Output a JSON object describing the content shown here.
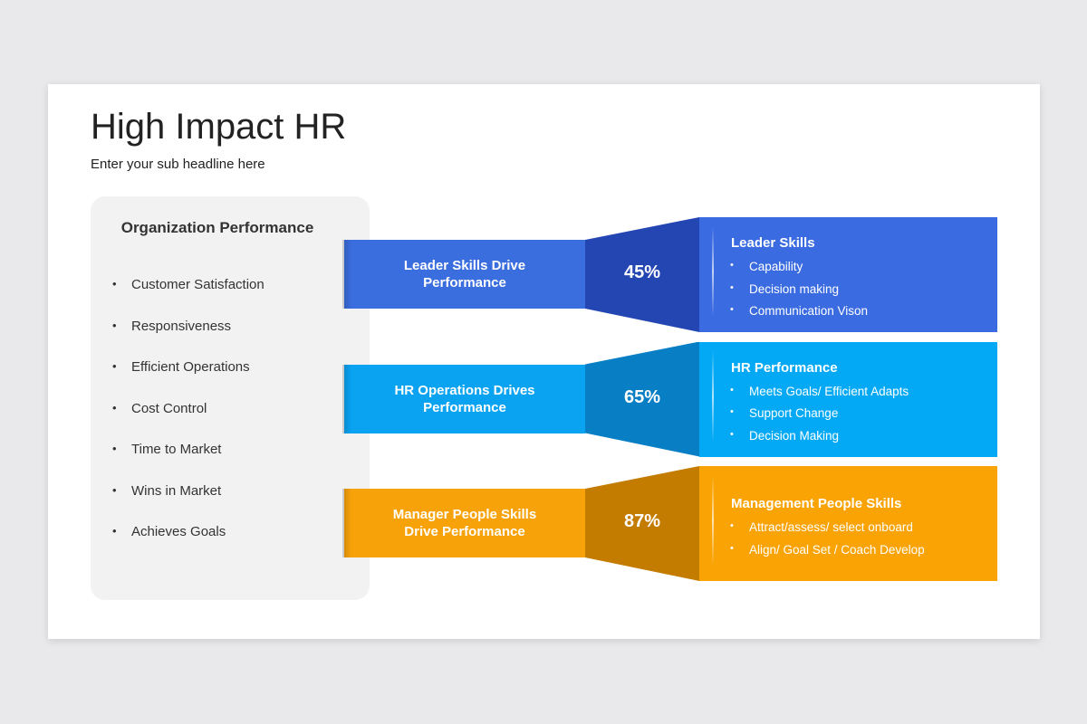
{
  "header": {
    "title": "High Impact HR",
    "subtitle": "Enter your sub headline here"
  },
  "panel": {
    "title": "Organization Performance",
    "items": [
      "Customer Satisfaction",
      "Responsiveness",
      "Efficient Operations",
      "Cost Control",
      "Time to Market",
      "Wins in Market",
      "Achieves Goals"
    ]
  },
  "rows": [
    {
      "label": "Leader Skills Drive Performance",
      "percent": "45%",
      "heading": "Leader Skills",
      "bullets": [
        "Capability",
        "Decision making",
        "Communication Vison"
      ]
    },
    {
      "label": "HR Operations Drives Performance",
      "percent": "65%",
      "heading": "HR Performance",
      "bullets": [
        "Meets Goals/ Efficient Adapts",
        "Support Change",
        "Decision Making"
      ]
    },
    {
      "label": "Manager People Skills Drive Performance",
      "percent": "87%",
      "heading": "Management People Skills",
      "bullets": [
        "Attract/assess/  select onboard",
        "Align/ Goal Set / Coach Develop"
      ]
    }
  ]
}
